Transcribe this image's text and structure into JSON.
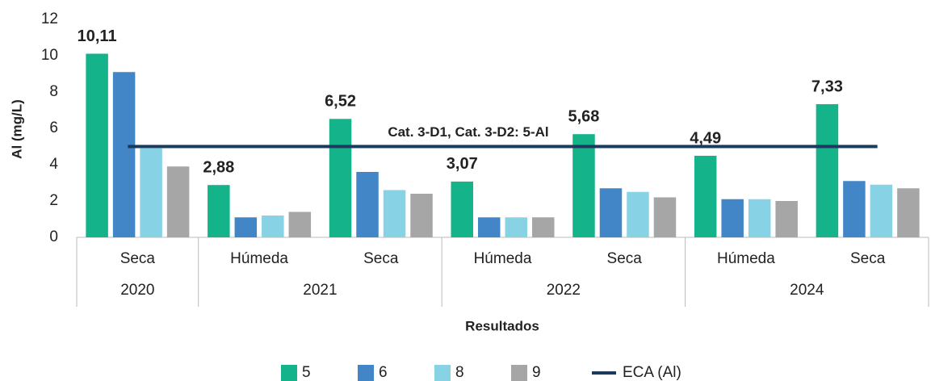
{
  "chart_data": {
    "type": "bar",
    "y_label": "Al (mg/L)",
    "x_label": "Resultados",
    "groups": [
      {
        "label": "2020",
        "categories": [
          "Seca"
        ]
      },
      {
        "label": "2021",
        "categories": [
          "Húmeda",
          "Seca"
        ]
      },
      {
        "label": "2022",
        "categories": [
          "Húmeda",
          "Seca"
        ]
      },
      {
        "label": "2024",
        "categories": [
          "Húmeda",
          "Seca"
        ]
      }
    ],
    "series": [
      {
        "name": "5",
        "color": "#15b38a",
        "values": [
          10.11,
          2.88,
          6.52,
          3.07,
          5.68,
          4.49,
          7.33
        ],
        "value_labels": [
          "10,11",
          "2,88",
          "6,52",
          "3,07",
          "5,68",
          "4,49",
          "7,33"
        ]
      },
      {
        "name": "6",
        "color": "#4386c8",
        "values": [
          9.1,
          1.1,
          3.6,
          1.1,
          2.7,
          2.1,
          3.1
        ]
      },
      {
        "name": "8",
        "color": "#88d2e6",
        "values": [
          4.9,
          1.2,
          2.6,
          1.1,
          2.5,
          2.1,
          2.9
        ]
      },
      {
        "name": "9",
        "color": "#a6a6a6",
        "values": [
          3.9,
          1.4,
          2.4,
          1.1,
          2.2,
          2.0,
          2.7
        ]
      }
    ],
    "reference_line": {
      "name": "ECA (Al)",
      "value": 5,
      "color": "#1b3a5c",
      "annotation": "Cat. 3-D1, Cat. 3-D2: 5-Al"
    },
    "ylim": [
      0,
      12
    ],
    "yticks": [
      0,
      2,
      4,
      6,
      8,
      10,
      12
    ],
    "grid": false
  }
}
